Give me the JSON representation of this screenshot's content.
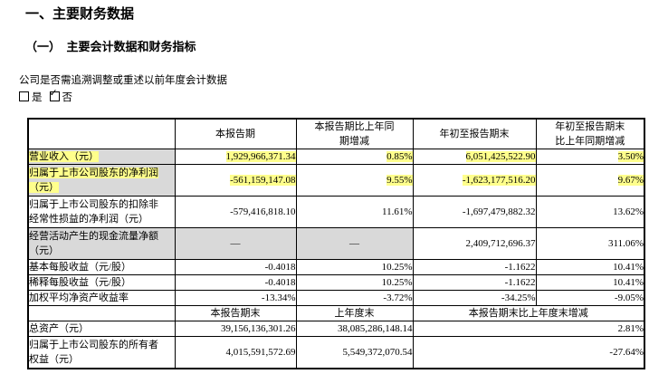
{
  "page": {
    "section_title": "一、主要财务数据",
    "subsection_title": "（一）　主要会计数据和财务指标",
    "restatement_question": "公司是否需追溯调整或重述以前年度会计数据",
    "option_yes": "是",
    "option_no": "否",
    "checkmark": "✓"
  },
  "colors": {
    "highlight": "#ffff8c",
    "cell_gray": "#d9d9d9"
  },
  "table": {
    "header_period": {
      "blank": "",
      "current": "本报告期",
      "current_change": "本报告期比上年同\n期增减",
      "ytd": "年初至报告期末",
      "ytd_change": "年初至报告期末\n比上年同期增减"
    },
    "rows_period": [
      {
        "label": "营业收入（元）",
        "values": [
          "1,929,966,371.34",
          "0.85%",
          "6,051,425,522.90",
          "3.50%"
        ]
      },
      {
        "label": "归属于上市公司股东的净利润\n（元）",
        "values": [
          "-561,159,147.08",
          "9.55%",
          "-1,623,177,516.20",
          "9.67%"
        ]
      },
      {
        "label": "归属于上市公司股东的扣除非\n经常性损益的净利润（元）",
        "values": [
          "-579,416,818.10",
          "11.61%",
          "-1,697,479,882.32",
          "13.62%"
        ]
      },
      {
        "label": "经营活动产生的现金流量净额\n（元）",
        "values": [
          "—",
          "—",
          "2,409,712,696.37",
          "311.06%"
        ]
      },
      {
        "label": "基本每股收益（元/股）",
        "values": [
          "-0.4018",
          "10.25%",
          "-1.1622",
          "10.41%"
        ]
      },
      {
        "label": "稀释每股收益（元/股）",
        "values": [
          "-0.4018",
          "10.25%",
          "-1.1622",
          "10.41%"
        ]
      },
      {
        "label": "加权平均净资产收益率",
        "values": [
          "-13.34%",
          "-3.72%",
          "-34.25%",
          "-9.05%"
        ]
      }
    ],
    "header_yearend": {
      "blank": "",
      "end_current": "本报告期末",
      "end_prev": "上年度末",
      "end_change": "本报告期末比上年度末增减"
    },
    "rows_yearend": [
      {
        "label": "总资产（元）",
        "values": [
          "39,156,136,301.26",
          "38,085,286,148.14",
          "2.81%"
        ]
      },
      {
        "label": "归属于上市公司股东的所有者\n权益（元）",
        "values": [
          "4,015,591,572.69",
          "5,549,372,070.54",
          "-27.64%"
        ]
      }
    ]
  }
}
